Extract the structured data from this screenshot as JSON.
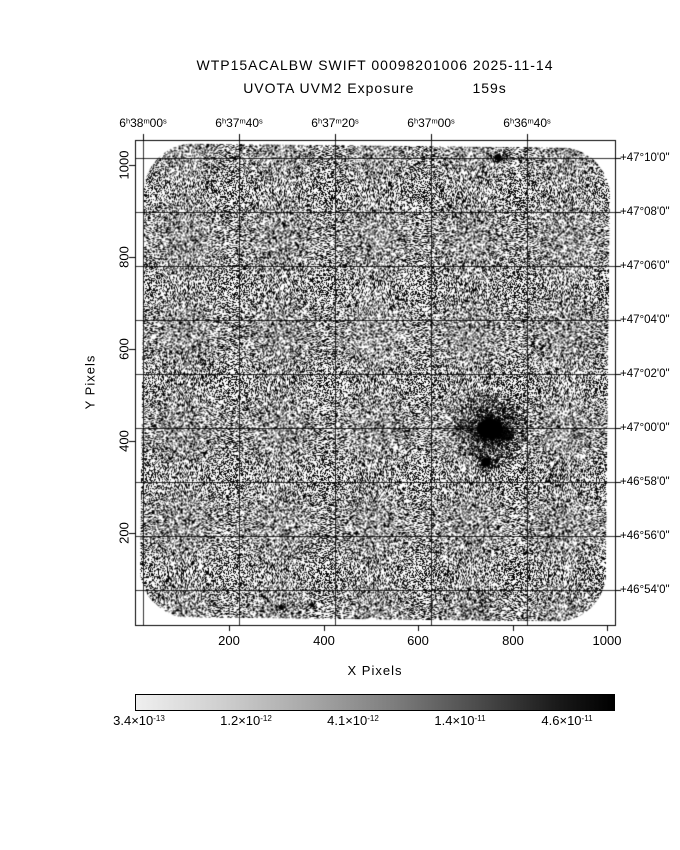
{
  "title": {
    "line1": "WTP15ACALBW SWIFT 00098201006 2025-11-14",
    "instrument": "UVOTA UVM2 Exposure",
    "exposure": "159s"
  },
  "axes": {
    "x_label": "X Pixels",
    "y_label": "Y Pixels",
    "x_ticks": [
      "200",
      "400",
      "600",
      "800",
      "1000"
    ],
    "y_ticks": [
      "200",
      "400",
      "600",
      "800",
      "1000"
    ],
    "ra_ticks": [
      "6h38m00s",
      "6h37m40s",
      "6h37m20s",
      "6h37m00s",
      "6h36m40s"
    ],
    "dec_ticks": [
      "+47°10'0\"",
      "+47°08'0\"",
      "+47°06'0\"",
      "+47°04'0\"",
      "+47°02'0\"",
      "+47°00'0\"",
      "+46°58'0\"",
      "+46°56'0\"",
      "+46°54'0\""
    ]
  },
  "colorbar": {
    "labels": [
      "3.4×10^-13",
      "1.2×10^-12",
      "4.1×10^-12",
      "1.4×10^-11",
      "4.6×10^-11"
    ]
  },
  "chart_data": {
    "type": "heatmap",
    "title": "WTP15ACALBW SWIFT 00098201006 2025-11-14",
    "subtitle": "UVOTA UVM2 Exposure 159s",
    "xlabel": "X Pixels",
    "ylabel": "Y Pixels",
    "xlim": [
      0,
      1030
    ],
    "ylim": [
      0,
      1054
    ],
    "x_ticks": [
      200,
      400,
      600,
      800,
      1000
    ],
    "y_ticks": [
      200,
      400,
      600,
      800,
      1000
    ],
    "ra_axis_ticks": [
      "6h38m00s",
      "6h37m40s",
      "6h37m20s",
      "6h37m00s",
      "6h36m40s"
    ],
    "dec_axis_ticks": [
      "+47°10'0\"",
      "+47°08'0\"",
      "+47°06'0\"",
      "+47°04'0\"",
      "+47°02'0\"",
      "+47°00'0\"",
      "+46°58'0\"",
      "+46°56'0\"",
      "+46°54'0\""
    ],
    "colorbar_values": [
      3.4e-13,
      1.2e-12,
      4.1e-12,
      1.4e-11,
      4.6e-11
    ],
    "colormap": "inverted-grayscale (dark = high value)",
    "grid": true,
    "legend": false,
    "detector": {
      "shape": "rounded-square",
      "rotation_deg": 0.6,
      "corner_radius_frac": 0.105,
      "noise_density": 0.42
    },
    "sources": [
      {
        "name": "bright-source-core",
        "fx": 0.74,
        "fy": 0.596,
        "core_rx": 13,
        "core_ry": 10,
        "tail_dx": 13,
        "tail_dy": 5,
        "tail_rx": 11,
        "tail_ry": 6,
        "halo_r": 38
      },
      {
        "name": "secondary-blob",
        "fx": 0.731,
        "fy": 0.664,
        "core_rx": 4.5,
        "core_ry": 4.5,
        "tail_dx": 0,
        "tail_dy": 0,
        "tail_rx": 0,
        "tail_ry": 0,
        "halo_r": 11
      },
      {
        "name": "top-edge-spot",
        "fx": 0.756,
        "fy": 0.035,
        "core_rx": 3,
        "core_ry": 3,
        "tail_dx": 0,
        "tail_dy": 0,
        "tail_rx": 0,
        "tail_ry": 0,
        "halo_r": 8
      }
    ],
    "faint_spots": [
      {
        "fx": 0.304,
        "fy": 0.963
      },
      {
        "fx": 0.369,
        "fy": 0.959
      }
    ]
  }
}
